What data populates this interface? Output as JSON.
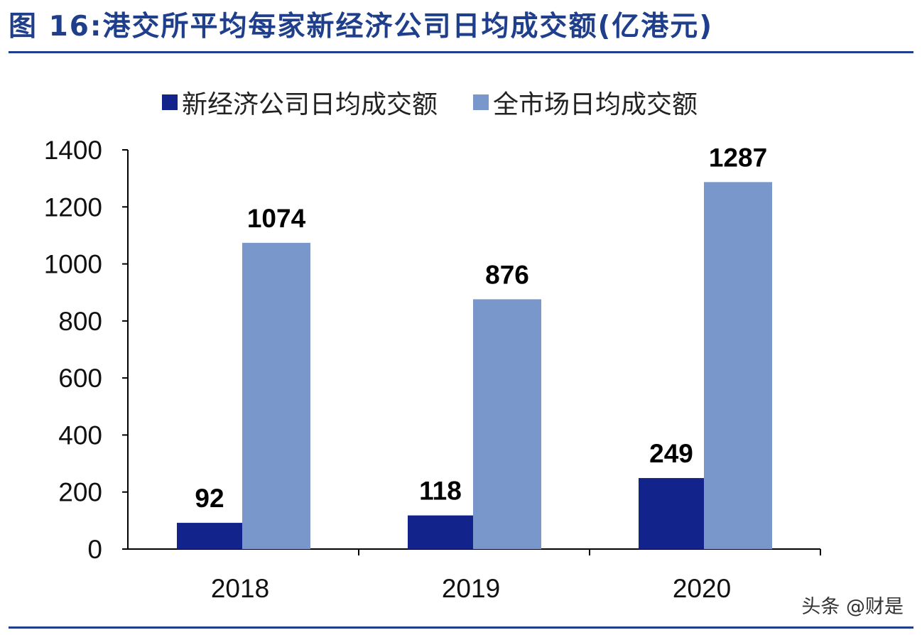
{
  "title": "图 16:港交所平均每家新经济公司日均成交额(亿港元)",
  "watermark": "头条 @财是",
  "chart_data": {
    "type": "bar",
    "categories": [
      "2018",
      "2019",
      "2020"
    ],
    "series": [
      {
        "name": "新经济公司日均成交额",
        "values": [
          92,
          118,
          249
        ],
        "color": "#13238c"
      },
      {
        "name": "全市场日均成交额",
        "values": [
          1074,
          876,
          1287
        ],
        "color": "#7a97cc"
      }
    ],
    "ylim": [
      0,
      1400
    ],
    "yticks": [
      0,
      200,
      400,
      600,
      800,
      1000,
      1200,
      1400
    ],
    "legend": "top",
    "grid": false
  }
}
